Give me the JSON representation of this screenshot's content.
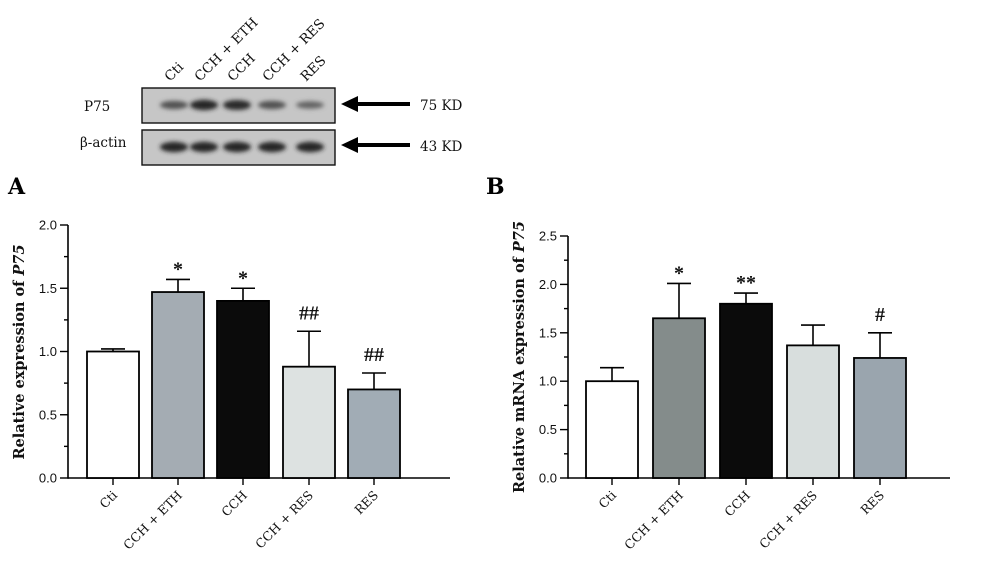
{
  "blot": {
    "lanes": [
      "Cti",
      "CCH + ETH",
      "CCH",
      "CCH + RES",
      "RES"
    ],
    "rows": [
      {
        "label": "P75",
        "size": "75 KD",
        "band_intensity": [
          0.55,
          0.9,
          0.85,
          0.55,
          0.4
        ]
      },
      {
        "label": "β-actin",
        "size": "43 KD",
        "band_intensity": [
          0.9,
          0.9,
          0.9,
          0.9,
          0.9
        ]
      }
    ]
  },
  "chart_data": [
    {
      "type": "bar",
      "panel": "A",
      "categories": [
        "Cti",
        "CCH + ETH",
        "CCH",
        "CCH + RES",
        "RES"
      ],
      "values": [
        1.0,
        1.47,
        1.4,
        0.88,
        0.7
      ],
      "errors": [
        0.02,
        0.1,
        0.1,
        0.28,
        0.13
      ],
      "significance": [
        "",
        "*",
        "*",
        "##",
        "##"
      ],
      "colors": [
        "#ffffff",
        "#a4acb3",
        "#0b0b0b",
        "#dde2e1",
        "#a1acb5"
      ],
      "ylabel_prefix": "Relative expression of ",
      "ylabel_gene": "P75",
      "ylim": [
        0,
        2.0
      ],
      "yticks": [
        "0.0",
        "0.5",
        "1.0",
        "1.5",
        "2.0"
      ]
    },
    {
      "type": "bar",
      "panel": "B",
      "categories": [
        "Cti",
        "CCH + ETH",
        "CCH",
        "CCH + RES",
        "RES"
      ],
      "values": [
        1.0,
        1.65,
        1.8,
        1.37,
        1.24
      ],
      "errors": [
        0.14,
        0.36,
        0.11,
        0.21,
        0.26
      ],
      "significance": [
        "",
        "*",
        "**",
        "",
        "#"
      ],
      "colors": [
        "#ffffff",
        "#848c8b",
        "#0b0b0b",
        "#d8dedd",
        "#9aa5ae"
      ],
      "ylabel_prefix": "Relative mRNA expression of ",
      "ylabel_gene": "P75",
      "ylim": [
        0,
        2.5
      ],
      "yticks": [
        "0.0",
        "0.5",
        "1.0",
        "1.5",
        "2.0",
        "2.5"
      ]
    }
  ]
}
